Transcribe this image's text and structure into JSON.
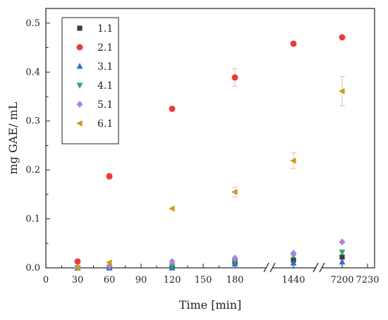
{
  "chart_data": {
    "type": "scatter",
    "xlabel": "Time [min]",
    "ylabel": "mg GAE/ mL",
    "ylim": [
      0,
      0.53
    ],
    "y_ticks": [
      "0.0",
      "0.1",
      "0.2",
      "0.3",
      "0.4",
      "0.5"
    ],
    "x_ticks": [
      "0",
      "30",
      "60",
      "90",
      "120",
      "150",
      "180",
      "1440",
      "7200",
      "7230"
    ],
    "x_axis_breaks": [
      "180-1440",
      "1440-7200"
    ],
    "legend_position": "top-left",
    "grid": false,
    "error_bar_color": "#e8bcbc",
    "series": [
      {
        "name": "1.1",
        "marker": "square",
        "color": "#3a3a3a",
        "points": [
          {
            "x": "30",
            "y": 0.0
          },
          {
            "x": "60",
            "y": 0.0
          },
          {
            "x": "120",
            "y": 0.0
          },
          {
            "x": "180",
            "y": 0.012
          },
          {
            "x": "1440",
            "y": 0.016
          },
          {
            "x": "7200",
            "y": 0.022
          }
        ]
      },
      {
        "name": "2.1",
        "marker": "circle",
        "color": "#ec3a3a",
        "points": [
          {
            "x": "30",
            "y": 0.013
          },
          {
            "x": "60",
            "y": 0.187,
            "err": 0.006
          },
          {
            "x": "120",
            "y": 0.325
          },
          {
            "x": "180",
            "y": 0.389,
            "err": 0.018
          },
          {
            "x": "1440",
            "y": 0.458
          },
          {
            "x": "7200",
            "y": 0.471
          }
        ]
      },
      {
        "name": "3.1",
        "marker": "triangle-up",
        "color": "#2f6fd6",
        "points": [
          {
            "x": "30",
            "y": 0.0
          },
          {
            "x": "60",
            "y": 0.0
          },
          {
            "x": "120",
            "y": 0.0
          },
          {
            "x": "180",
            "y": 0.008
          },
          {
            "x": "1440",
            "y": 0.01
          },
          {
            "x": "7200",
            "y": 0.012
          }
        ]
      },
      {
        "name": "4.1",
        "marker": "triangle-down",
        "color": "#2fa86a",
        "points": [
          {
            "x": "30",
            "y": 0.0
          },
          {
            "x": "60",
            "y": 0.001
          },
          {
            "x": "120",
            "y": 0.004
          },
          {
            "x": "180",
            "y": 0.013
          },
          {
            "x": "1440",
            "y": 0.025
          },
          {
            "x": "7200",
            "y": 0.032
          }
        ]
      },
      {
        "name": "5.1",
        "marker": "diamond",
        "color": "#b57fe0",
        "points": [
          {
            "x": "30",
            "y": 0.001
          },
          {
            "x": "60",
            "y": 0.004
          },
          {
            "x": "120",
            "y": 0.013
          },
          {
            "x": "180",
            "y": 0.02
          },
          {
            "x": "1440",
            "y": 0.03
          },
          {
            "x": "7200",
            "y": 0.053
          }
        ]
      },
      {
        "name": "6.1",
        "marker": "triangle-left",
        "color": "#c9a012",
        "points": [
          {
            "x": "30",
            "y": 0.0
          },
          {
            "x": "60",
            "y": 0.011
          },
          {
            "x": "120",
            "y": 0.121
          },
          {
            "x": "180",
            "y": 0.155,
            "err": 0.01
          },
          {
            "x": "1440",
            "y": 0.219,
            "err": 0.016
          },
          {
            "x": "7200",
            "y": 0.361,
            "err": 0.03
          }
        ]
      }
    ]
  }
}
